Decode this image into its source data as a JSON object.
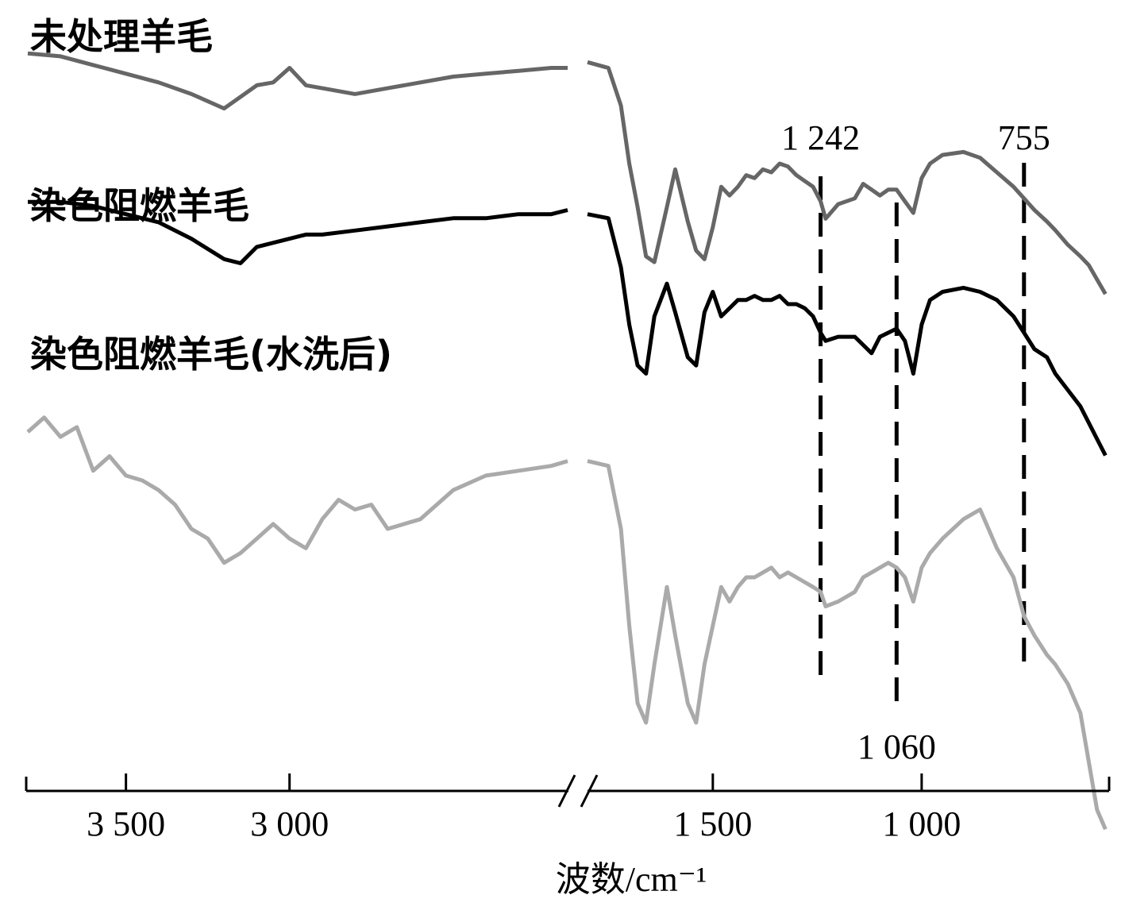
{
  "chart_data": {
    "type": "line",
    "title": "",
    "xlabel": "波数/cm⁻¹",
    "ylabel": "",
    "x_reversed": true,
    "x_break": [
      2150,
      1800
    ],
    "xlim": [
      3800,
      500
    ],
    "xticks": [
      {
        "value": 3500,
        "label": "3 500"
      },
      {
        "value": 3000,
        "label": "3 000"
      },
      {
        "value": 1500,
        "label": "1 500"
      },
      {
        "value": 1000,
        "label": "1 000"
      }
    ],
    "markers": [
      {
        "value": 1242,
        "label": "1 242",
        "label_position": "top"
      },
      {
        "value": 1060,
        "label": "1 060",
        "label_position": "bottom"
      },
      {
        "value": 755,
        "label": "755",
        "label_position": "top"
      }
    ],
    "series": [
      {
        "name": "未处理羊毛",
        "color": "#666666",
        "x": [
          3800,
          3700,
          3600,
          3500,
          3400,
          3300,
          3200,
          3100,
          3050,
          3000,
          2950,
          2900,
          2800,
          2700,
          2600,
          2500,
          2400,
          2300,
          2200,
          2150,
          1800,
          1750,
          1720,
          1700,
          1680,
          1660,
          1640,
          1610,
          1590,
          1560,
          1540,
          1520,
          1500,
          1480,
          1460,
          1440,
          1420,
          1400,
          1380,
          1360,
          1340,
          1320,
          1300,
          1280,
          1260,
          1242,
          1230,
          1200,
          1160,
          1140,
          1120,
          1100,
          1080,
          1060,
          1040,
          1020,
          1000,
          980,
          950,
          900,
          860,
          820,
          780,
          755,
          730,
          700,
          680,
          650,
          620,
          600,
          580,
          560
        ],
        "y": [
          98,
          97,
          94,
          91,
          88,
          84,
          79,
          87,
          88,
          93,
          87,
          86,
          84,
          86,
          88,
          90,
          91,
          92,
          93,
          93,
          95,
          93,
          80,
          60,
          45,
          28,
          26,
          45,
          58,
          40,
          30,
          27,
          38,
          52,
          49,
          52,
          56,
          55,
          58,
          57,
          60,
          59,
          56,
          54,
          52,
          47,
          41,
          46,
          48,
          53,
          51,
          49,
          51,
          51,
          47,
          43,
          55,
          60,
          63,
          64,
          62,
          57,
          52,
          48,
          44,
          40,
          37,
          32,
          28,
          25,
          20,
          15
        ]
      },
      {
        "name": "染色阻燃羊毛",
        "color": "#000000",
        "x": [
          3800,
          3700,
          3600,
          3500,
          3400,
          3300,
          3200,
          3150,
          3100,
          3000,
          2950,
          2900,
          2800,
          2700,
          2600,
          2500,
          2400,
          2300,
          2200,
          2150,
          1800,
          1750,
          1720,
          1700,
          1680,
          1660,
          1640,
          1610,
          1590,
          1560,
          1540,
          1520,
          1500,
          1480,
          1460,
          1440,
          1420,
          1400,
          1380,
          1360,
          1340,
          1320,
          1300,
          1280,
          1260,
          1242,
          1230,
          1200,
          1160,
          1140,
          1120,
          1100,
          1080,
          1060,
          1040,
          1020,
          1000,
          980,
          950,
          900,
          860,
          820,
          780,
          755,
          730,
          700,
          680,
          650,
          620,
          600,
          580,
          560
        ],
        "y": [
          72,
          72,
          71,
          69,
          67,
          63,
          58,
          57,
          61,
          63,
          64,
          64,
          65,
          66,
          67,
          68,
          68,
          69,
          69,
          70,
          69,
          68,
          56,
          42,
          32,
          30,
          44,
          52,
          45,
          34,
          32,
          45,
          50,
          44,
          46,
          48,
          48,
          49,
          48,
          48,
          49,
          47,
          47,
          46,
          44,
          40,
          38,
          39,
          39,
          37,
          35,
          39,
          40,
          41,
          38,
          30,
          42,
          48,
          50,
          51,
          50,
          48,
          44,
          40,
          36,
          34,
          30,
          26,
          22,
          18,
          14,
          10
        ]
      },
      {
        "name": "染色阻燃羊毛(水洗后)",
        "color": "#aaaaaa",
        "x": [
          3800,
          3750,
          3700,
          3650,
          3600,
          3550,
          3500,
          3450,
          3400,
          3350,
          3300,
          3250,
          3200,
          3150,
          3100,
          3050,
          3000,
          2950,
          2900,
          2850,
          2800,
          2750,
          2700,
          2600,
          2500,
          2400,
          2300,
          2200,
          2150,
          1800,
          1750,
          1720,
          1700,
          1680,
          1660,
          1640,
          1610,
          1590,
          1560,
          1540,
          1520,
          1500,
          1480,
          1460,
          1440,
          1420,
          1400,
          1380,
          1360,
          1340,
          1320,
          1300,
          1280,
          1260,
          1242,
          1230,
          1200,
          1160,
          1140,
          1120,
          1100,
          1080,
          1060,
          1040,
          1020,
          1000,
          980,
          950,
          900,
          860,
          840,
          820,
          780,
          755,
          730,
          700,
          680,
          650,
          620,
          600,
          580,
          560
        ],
        "y": [
          60,
          63,
          59,
          61,
          52,
          55,
          51,
          50,
          48,
          45,
          40,
          38,
          33,
          35,
          38,
          41,
          38,
          36,
          42,
          46,
          44,
          45,
          40,
          42,
          48,
          51,
          52,
          53,
          54,
          54,
          53,
          40,
          20,
          4,
          0,
          12,
          28,
          18,
          4,
          0,
          12,
          20,
          28,
          25,
          28,
          30,
          30,
          31,
          32,
          30,
          31,
          30,
          29,
          28,
          27,
          24,
          25,
          27,
          30,
          31,
          32,
          33,
          32,
          30,
          25,
          32,
          35,
          38,
          42,
          44,
          40,
          36,
          30,
          22,
          18,
          14,
          12,
          8,
          2,
          -8,
          -18,
          -22
        ]
      }
    ],
    "label_x": 3800
  }
}
